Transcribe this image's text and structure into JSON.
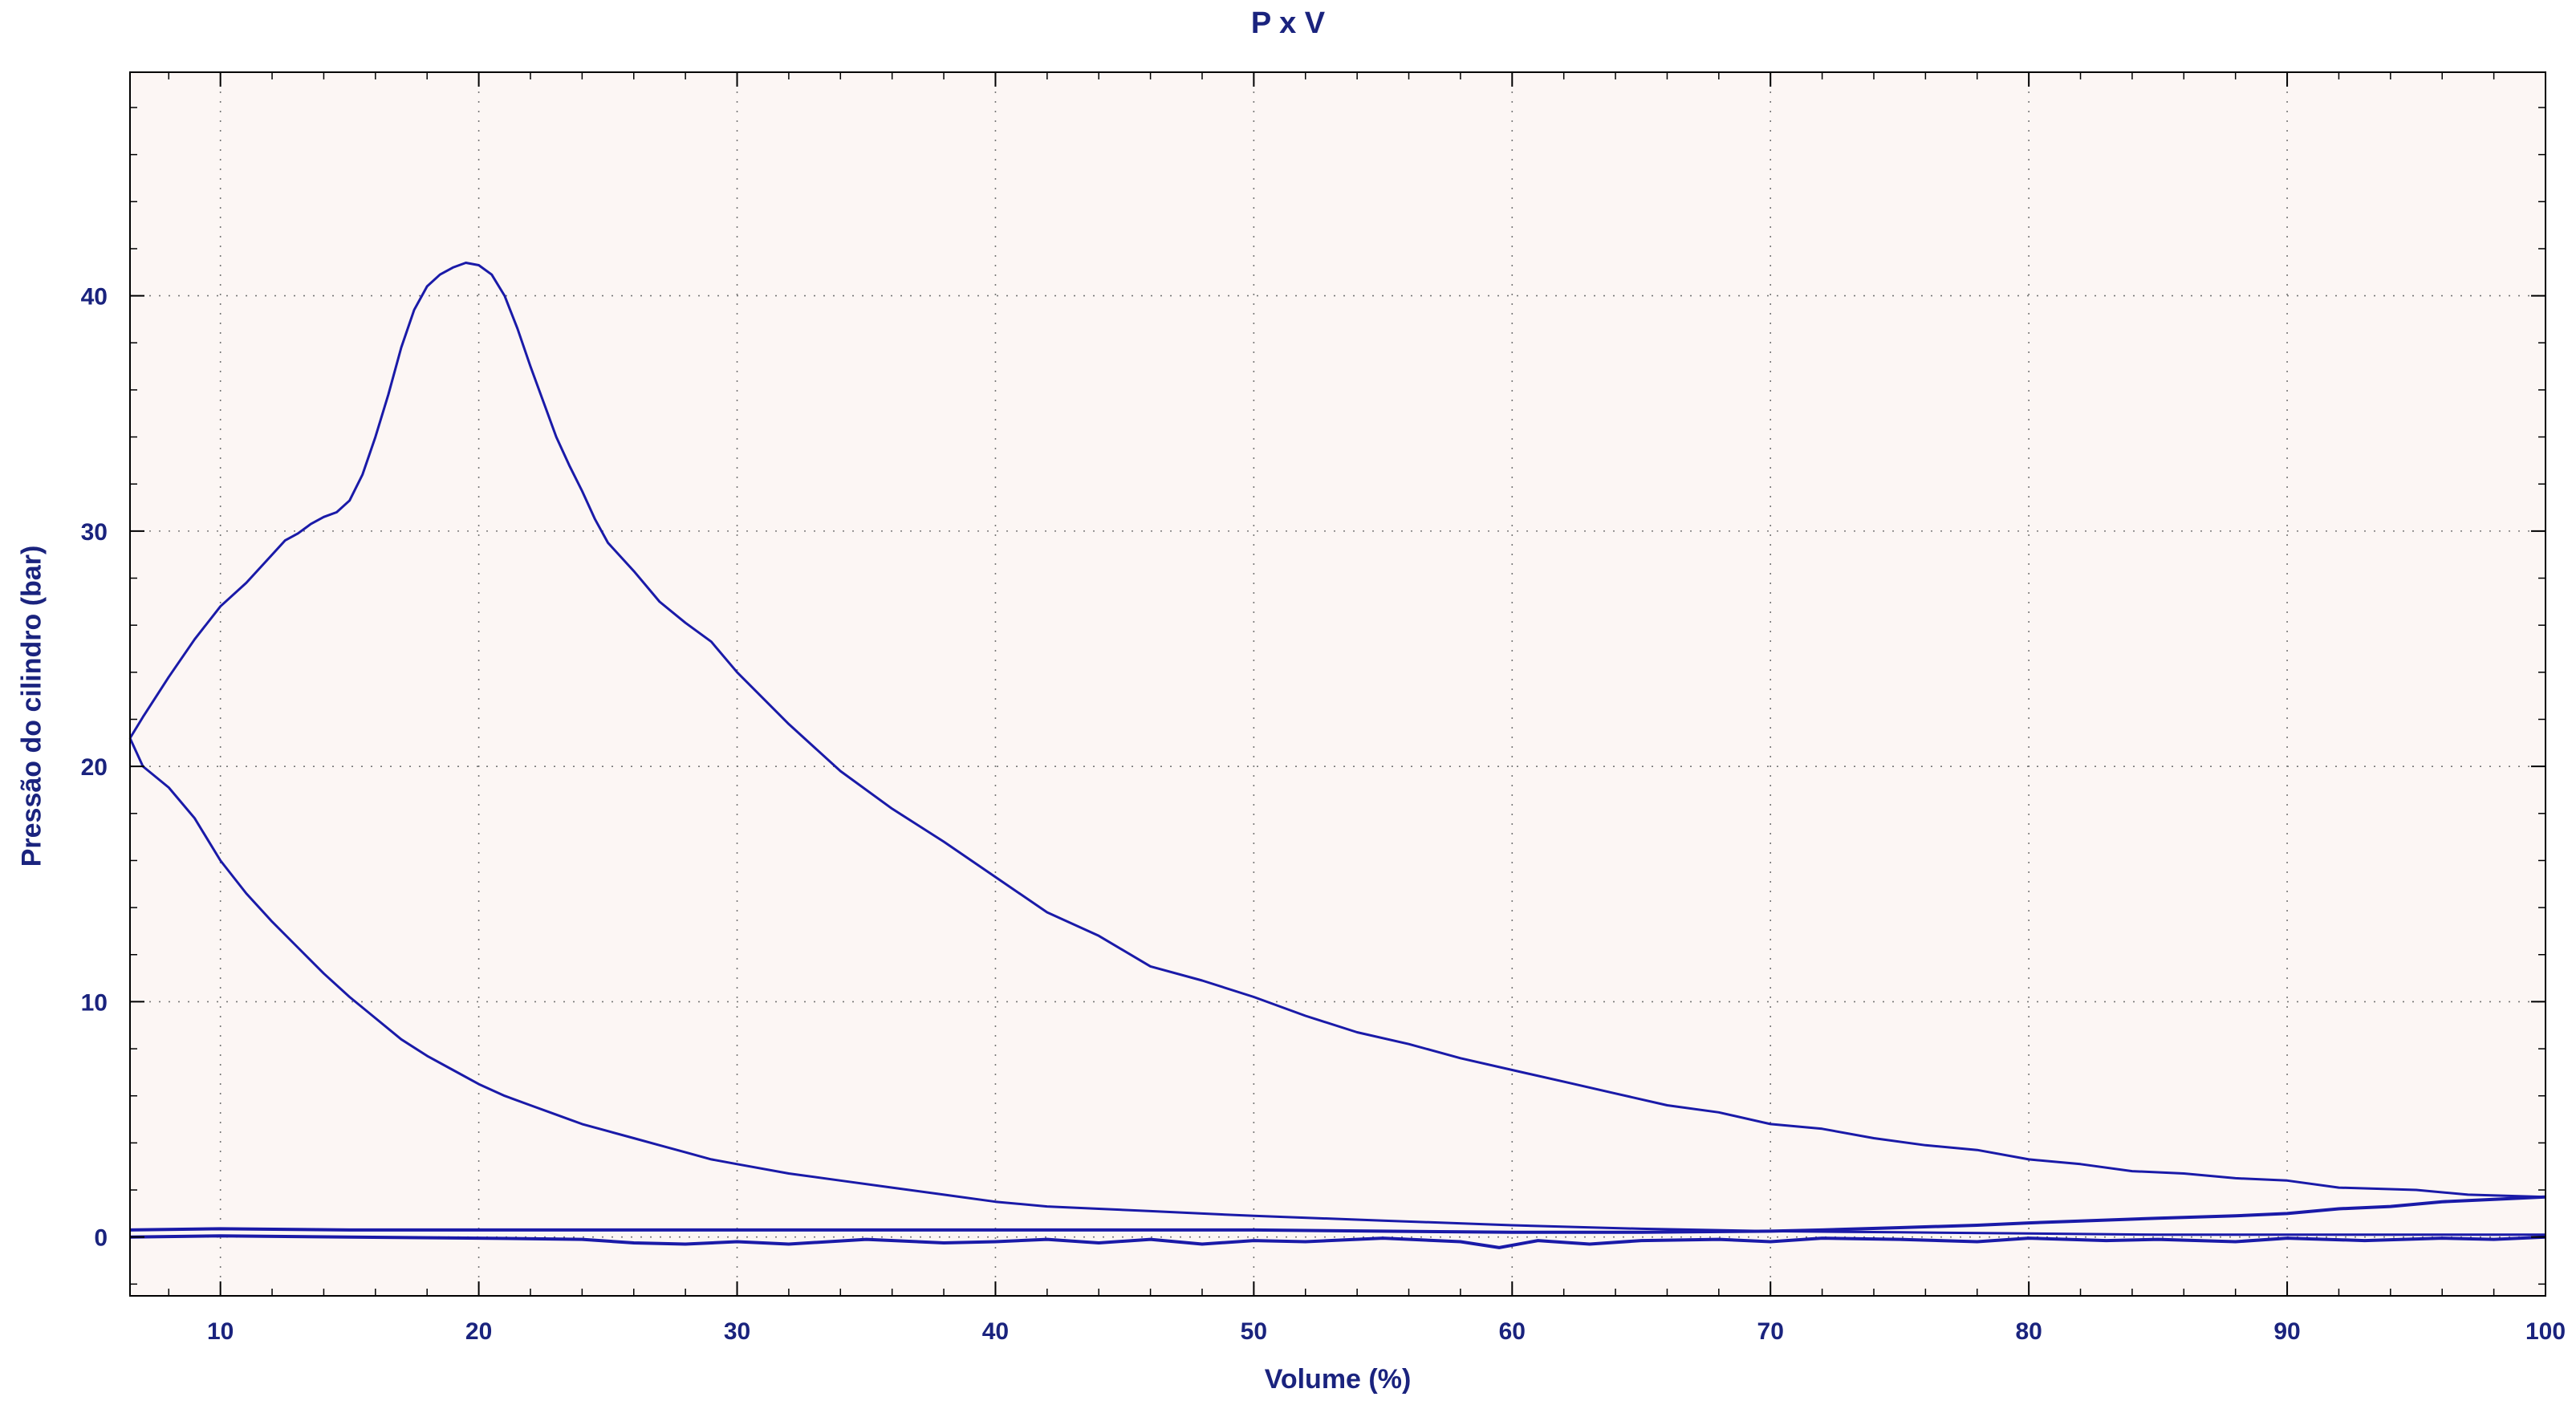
{
  "chart_data": {
    "type": "line",
    "title": "P x V",
    "xlabel": "Volume (%)",
    "ylabel": "Pressão do cilindro (bar)",
    "xlim": [
      6.5,
      100
    ],
    "ylim": [
      -2.5,
      49.5
    ],
    "xticks": [
      10,
      20,
      30,
      40,
      50,
      60,
      70,
      80,
      90,
      100
    ],
    "yticks": [
      0,
      10,
      20,
      30,
      40
    ],
    "grid": true,
    "colors": {
      "line": "#1a1aa8",
      "plot_bg": "#fcf6f4",
      "text": "#1a237e"
    },
    "series": [
      {
        "points": [
          [
            100,
            1.7
          ],
          [
            97,
            1.8
          ],
          [
            95,
            2.0
          ],
          [
            92,
            2.1
          ],
          [
            90,
            2.4
          ],
          [
            88,
            2.5
          ],
          [
            86,
            2.7
          ],
          [
            84,
            2.8
          ],
          [
            82,
            3.1
          ],
          [
            80,
            3.3
          ],
          [
            78,
            3.7
          ],
          [
            76,
            3.9
          ],
          [
            74,
            4.2
          ],
          [
            72,
            4.6
          ],
          [
            70,
            4.8
          ],
          [
            68,
            5.3
          ],
          [
            66,
            5.6
          ],
          [
            64,
            6.1
          ],
          [
            62,
            6.6
          ],
          [
            60,
            7.1
          ],
          [
            58,
            7.6
          ],
          [
            56,
            8.2
          ],
          [
            54,
            8.7
          ],
          [
            52,
            9.4
          ],
          [
            50,
            10.2
          ],
          [
            48,
            10.9
          ],
          [
            46,
            11.5
          ],
          [
            44,
            12.8
          ],
          [
            42,
            13.8
          ],
          [
            40,
            15.3
          ],
          [
            38,
            16.8
          ],
          [
            36,
            18.2
          ],
          [
            34,
            19.8
          ],
          [
            32,
            21.8
          ],
          [
            30,
            24.0
          ],
          [
            29,
            25.3
          ],
          [
            28,
            26.1
          ],
          [
            27,
            27.0
          ],
          [
            26,
            28.3
          ],
          [
            25,
            29.5
          ],
          [
            24.5,
            30.5
          ],
          [
            24,
            31.7
          ],
          [
            23.5,
            32.8
          ],
          [
            23,
            34.0
          ],
          [
            22.5,
            35.5
          ],
          [
            22,
            37.0
          ],
          [
            21.5,
            38.6
          ],
          [
            21,
            40.0
          ],
          [
            20.5,
            40.9
          ],
          [
            20,
            41.3
          ],
          [
            19.5,
            41.4
          ],
          [
            19,
            41.2
          ],
          [
            18.5,
            40.9
          ],
          [
            18,
            40.4
          ],
          [
            17.5,
            39.4
          ],
          [
            17,
            37.8
          ],
          [
            16.5,
            35.8
          ],
          [
            16,
            34.0
          ],
          [
            15.5,
            32.4
          ],
          [
            15,
            31.3
          ],
          [
            14.5,
            30.8
          ],
          [
            14,
            30.6
          ],
          [
            13.5,
            30.3
          ],
          [
            13,
            29.9
          ],
          [
            12.5,
            29.6
          ],
          [
            12,
            29.0
          ],
          [
            11,
            27.8
          ],
          [
            10,
            26.8
          ],
          [
            9,
            25.4
          ],
          [
            8,
            23.8
          ],
          [
            7,
            22.1
          ],
          [
            6.5,
            21.2
          ]
        ]
      },
      {
        "points": [
          [
            6.5,
            21.2
          ],
          [
            7,
            20.0
          ],
          [
            8,
            19.1
          ],
          [
            9,
            17.8
          ],
          [
            10,
            16.0
          ],
          [
            11,
            14.6
          ],
          [
            12,
            13.4
          ],
          [
            13,
            12.3
          ],
          [
            14,
            11.2
          ],
          [
            15,
            10.2
          ],
          [
            16,
            9.3
          ],
          [
            17,
            8.4
          ],
          [
            18,
            7.7
          ],
          [
            19,
            7.1
          ],
          [
            20,
            6.5
          ],
          [
            21,
            6.0
          ],
          [
            22,
            5.6
          ],
          [
            23,
            5.2
          ],
          [
            24,
            4.8
          ],
          [
            25,
            4.5
          ],
          [
            26,
            4.2
          ],
          [
            27,
            3.9
          ],
          [
            28,
            3.6
          ],
          [
            29,
            3.3
          ],
          [
            30,
            3.1
          ],
          [
            32,
            2.7
          ],
          [
            34,
            2.4
          ],
          [
            36,
            2.1
          ],
          [
            38,
            1.8
          ],
          [
            40,
            1.5
          ],
          [
            42,
            1.3
          ],
          [
            44,
            1.2
          ],
          [
            46,
            1.1
          ],
          [
            48,
            1.0
          ],
          [
            50,
            0.9
          ],
          [
            55,
            0.7
          ],
          [
            60,
            0.5
          ],
          [
            65,
            0.35
          ],
          [
            70,
            0.25
          ],
          [
            75,
            0.2
          ],
          [
            80,
            0.15
          ],
          [
            85,
            0.1
          ],
          [
            90,
            0.1
          ],
          [
            95,
            0.1
          ],
          [
            100,
            0.1
          ]
        ]
      },
      {
        "points": [
          [
            6.5,
            0.3
          ],
          [
            10,
            0.35
          ],
          [
            15,
            0.3
          ],
          [
            20,
            0.3
          ],
          [
            25,
            0.3
          ],
          [
            30,
            0.3
          ],
          [
            35,
            0.3
          ],
          [
            40,
            0.3
          ],
          [
            45,
            0.3
          ],
          [
            50,
            0.3
          ],
          [
            55,
            0.25
          ],
          [
            60,
            0.2
          ],
          [
            65,
            0.2
          ],
          [
            70,
            0.25
          ],
          [
            72,
            0.3
          ],
          [
            75,
            0.4
          ],
          [
            78,
            0.5
          ],
          [
            80,
            0.6
          ],
          [
            85,
            0.8
          ],
          [
            88,
            0.9
          ],
          [
            90,
            1.0
          ],
          [
            92,
            1.2
          ],
          [
            94,
            1.3
          ],
          [
            96,
            1.5
          ],
          [
            98,
            1.6
          ],
          [
            100,
            1.7
          ]
        ]
      },
      {
        "points": [
          [
            6.5,
            0.0
          ],
          [
            10,
            0.05
          ],
          [
            15,
            0.0
          ],
          [
            20,
            -0.05
          ],
          [
            24,
            -0.1
          ],
          [
            26,
            -0.25
          ],
          [
            28,
            -0.3
          ],
          [
            30,
            -0.2
          ],
          [
            32,
            -0.3
          ],
          [
            35,
            -0.1
          ],
          [
            38,
            -0.25
          ],
          [
            40,
            -0.2
          ],
          [
            42,
            -0.1
          ],
          [
            44,
            -0.25
          ],
          [
            46,
            -0.1
          ],
          [
            48,
            -0.3
          ],
          [
            50,
            -0.15
          ],
          [
            52,
            -0.2
          ],
          [
            55,
            -0.05
          ],
          [
            58,
            -0.2
          ],
          [
            59.5,
            -0.45
          ],
          [
            61,
            -0.15
          ],
          [
            63,
            -0.3
          ],
          [
            65,
            -0.15
          ],
          [
            68,
            -0.1
          ],
          [
            70,
            -0.2
          ],
          [
            72,
            -0.05
          ],
          [
            75,
            -0.1
          ],
          [
            78,
            -0.2
          ],
          [
            80,
            -0.05
          ],
          [
            83,
            -0.15
          ],
          [
            85,
            -0.1
          ],
          [
            88,
            -0.2
          ],
          [
            90,
            -0.05
          ],
          [
            93,
            -0.15
          ],
          [
            96,
            -0.05
          ],
          [
            98,
            -0.1
          ],
          [
            100,
            0.0
          ]
        ]
      }
    ]
  }
}
